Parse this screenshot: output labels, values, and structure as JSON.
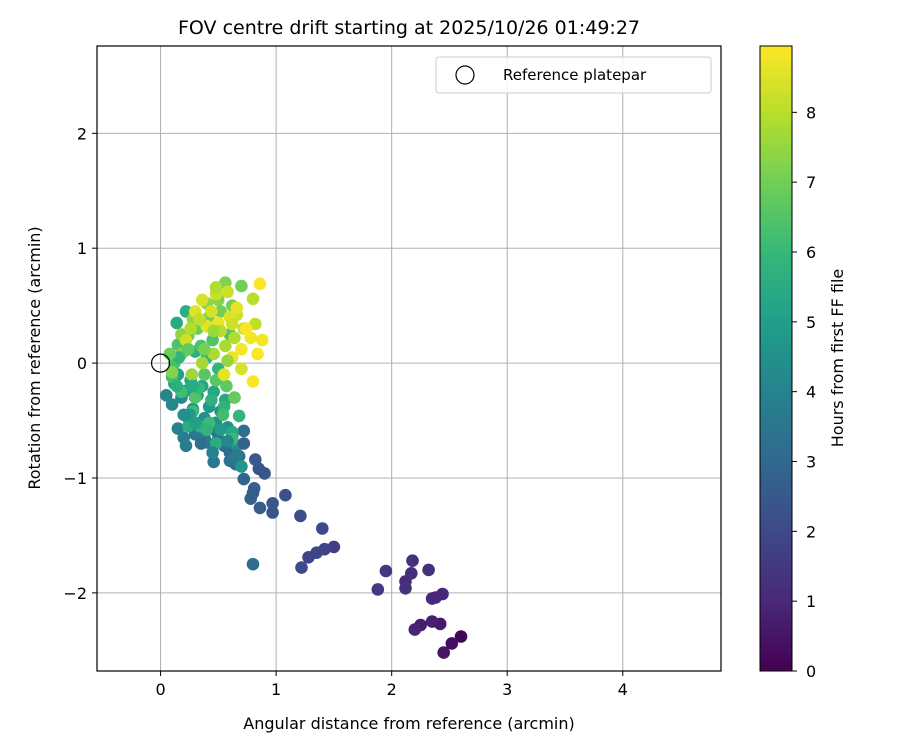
{
  "chart_data": {
    "type": "scatter",
    "title": "FOV centre drift starting at 2025/10/26 01:49:27",
    "xlabel": "Angular distance from reference (arcmin)",
    "ylabel": "Rotation from reference (arcmin)",
    "xlim": [
      -0.55,
      4.85
    ],
    "ylim": [
      -2.68,
      2.76
    ],
    "xticks": [
      0,
      1,
      2,
      3,
      4
    ],
    "yticks": [
      -2,
      -1,
      0,
      1,
      2
    ],
    "xtick_labels": [
      "0",
      "1",
      "2",
      "3",
      "4"
    ],
    "ytick_labels": [
      "−2",
      "−1",
      "0",
      "1",
      "2"
    ],
    "grid": true,
    "legend": {
      "label": "Reference platepar",
      "position": "top-right"
    },
    "reference_point": {
      "x": 0,
      "y": 0
    },
    "colorbar": {
      "label": "Hours from first FF file",
      "colormap": "viridis",
      "range": [
        0,
        8.95
      ],
      "ticks": [
        0,
        1,
        2,
        3,
        4,
        5,
        6,
        7,
        8
      ],
      "tick_labels": [
        "0",
        "1",
        "2",
        "3",
        "4",
        "5",
        "6",
        "7",
        "8"
      ]
    },
    "points": [
      [
        2.6,
        -2.38,
        0.1
      ],
      [
        2.52,
        -2.44,
        0.3
      ],
      [
        2.45,
        -2.52,
        0.5
      ],
      [
        2.42,
        -2.27,
        0.6
      ],
      [
        2.35,
        -2.25,
        0.8
      ],
      [
        2.25,
        -2.28,
        0.7
      ],
      [
        2.2,
        -2.32,
        0.9
      ],
      [
        2.44,
        -2.01,
        1.0
      ],
      [
        2.35,
        -2.05,
        1.1
      ],
      [
        2.38,
        -2.04,
        1.0
      ],
      [
        2.32,
        -1.8,
        1.2
      ],
      [
        2.18,
        -1.72,
        1.3
      ],
      [
        2.17,
        -1.83,
        1.2
      ],
      [
        2.12,
        -1.9,
        1.1
      ],
      [
        2.12,
        -1.96,
        1.3
      ],
      [
        1.95,
        -1.81,
        1.4
      ],
      [
        1.88,
        -1.97,
        1.5
      ],
      [
        1.5,
        -1.6,
        1.7
      ],
      [
        1.42,
        -1.62,
        1.8
      ],
      [
        1.35,
        -1.65,
        1.9
      ],
      [
        1.28,
        -1.69,
        1.9
      ],
      [
        1.22,
        -1.78,
        2.0
      ],
      [
        1.4,
        -1.44,
        2.0
      ],
      [
        1.21,
        -1.33,
        2.1
      ],
      [
        1.08,
        -1.15,
        2.2
      ],
      [
        0.97,
        -1.3,
        2.3
      ],
      [
        0.97,
        -1.22,
        2.5
      ],
      [
        0.9,
        -0.96,
        2.4
      ],
      [
        0.85,
        -0.92,
        2.3
      ],
      [
        0.82,
        -0.84,
        2.5
      ],
      [
        0.86,
        -1.26,
        2.6
      ],
      [
        0.81,
        -1.09,
        2.7
      ],
      [
        0.78,
        -1.18,
        2.8
      ],
      [
        0.8,
        -1.13,
        2.6
      ],
      [
        0.72,
        -1.01,
        2.9
      ],
      [
        0.8,
        -1.75,
        3.2
      ],
      [
        0.65,
        -0.88,
        3.0
      ],
      [
        0.6,
        -0.78,
        3.0
      ],
      [
        0.68,
        -0.81,
        3.1
      ],
      [
        0.72,
        -0.59,
        3.2
      ],
      [
        0.62,
        -0.63,
        3.3
      ],
      [
        0.55,
        -0.72,
        3.3
      ],
      [
        0.5,
        -0.66,
        3.4
      ],
      [
        0.48,
        -0.59,
        3.5
      ],
      [
        0.46,
        -0.86,
        3.6
      ],
      [
        0.4,
        -0.69,
        3.5
      ],
      [
        0.38,
        -0.65,
        3.7
      ],
      [
        0.35,
        -0.56,
        3.8
      ],
      [
        0.3,
        -0.62,
        3.6
      ],
      [
        0.22,
        -0.72,
        3.8
      ],
      [
        0.15,
        -0.57,
        3.9
      ],
      [
        0.2,
        -0.65,
        3.8
      ],
      [
        0.25,
        -0.5,
        4.0
      ],
      [
        0.05,
        -0.28,
        4.1
      ],
      [
        0.1,
        -0.36,
        4.2
      ],
      [
        0.18,
        -0.3,
        4.2
      ],
      [
        0.28,
        -0.4,
        4.3
      ],
      [
        0.38,
        -0.48,
        4.4
      ],
      [
        0.48,
        -0.52,
        4.5
      ],
      [
        0.58,
        -0.56,
        4.4
      ],
      [
        0.66,
        -0.72,
        4.6
      ],
      [
        0.7,
        -0.9,
        4.7
      ],
      [
        0.52,
        -0.42,
        4.6
      ],
      [
        0.42,
        -0.38,
        4.8
      ],
      [
        0.32,
        -0.28,
        4.9
      ],
      [
        0.22,
        -0.24,
        5.0
      ],
      [
        0.12,
        -0.18,
        5.0
      ],
      [
        0.15,
        -0.1,
        5.1
      ],
      [
        0.26,
        -0.15,
        5.2
      ],
      [
        0.36,
        -0.2,
        5.2
      ],
      [
        0.46,
        -0.25,
        5.3
      ],
      [
        0.56,
        -0.32,
        5.3
      ],
      [
        0.62,
        -0.6,
        5.4
      ],
      [
        0.48,
        -0.7,
        5.5
      ],
      [
        0.34,
        -0.55,
        5.6
      ],
      [
        0.24,
        -0.55,
        5.5
      ],
      [
        0.14,
        0.35,
        5.4
      ],
      [
        0.22,
        0.45,
        5.6
      ],
      [
        0.3,
        0.1,
        5.7
      ],
      [
        0.4,
        0.05,
        5.8
      ],
      [
        0.5,
        -0.05,
        5.9
      ],
      [
        0.55,
        -0.38,
        5.8
      ],
      [
        0.68,
        -0.46,
        5.9
      ],
      [
        0.62,
        -0.66,
        6.0
      ],
      [
        0.42,
        -0.52,
        6.1
      ],
      [
        0.28,
        -0.42,
        6.1
      ],
      [
        0.18,
        -0.25,
        6.2
      ],
      [
        0.1,
        -0.12,
        6.2
      ],
      [
        0.12,
        0.0,
        6.3
      ],
      [
        0.2,
        0.1,
        6.3
      ],
      [
        0.35,
        0.15,
        6.4
      ],
      [
        0.45,
        0.2,
        6.4
      ],
      [
        0.6,
        0.25,
        6.5
      ],
      [
        0.3,
        -0.3,
        6.5
      ],
      [
        0.38,
        -0.1,
        6.6
      ],
      [
        0.48,
        -0.15,
        6.6
      ],
      [
        0.57,
        -0.2,
        6.7
      ],
      [
        0.15,
        0.16,
        6.4
      ],
      [
        0.24,
        0.24,
        6.8
      ],
      [
        0.32,
        0.3,
        6.9
      ],
      [
        0.42,
        0.4,
        7.0
      ],
      [
        0.52,
        0.45,
        7.0
      ],
      [
        0.62,
        0.5,
        7.1
      ],
      [
        0.7,
        0.67,
        7.0
      ],
      [
        0.56,
        0.7,
        7.2
      ],
      [
        0.5,
        0.55,
        7.3
      ],
      [
        0.4,
        0.52,
        7.4
      ],
      [
        0.28,
        0.38,
        7.5
      ],
      [
        0.18,
        0.25,
        7.4
      ],
      [
        0.1,
        -0.08,
        7.3
      ],
      [
        0.27,
        -0.1,
        7.6
      ],
      [
        0.36,
        0.0,
        7.7
      ],
      [
        0.46,
        0.08,
        7.8
      ],
      [
        0.56,
        0.15,
        7.8
      ],
      [
        0.64,
        0.22,
        7.9
      ],
      [
        0.72,
        0.3,
        8.0
      ],
      [
        0.82,
        0.34,
        8.1
      ],
      [
        0.8,
        0.56,
        8.0
      ],
      [
        0.66,
        0.42,
        8.2
      ],
      [
        0.58,
        0.62,
        8.3
      ],
      [
        0.48,
        0.6,
        8.2
      ],
      [
        0.36,
        0.55,
        8.4
      ],
      [
        0.3,
        0.45,
        8.5
      ],
      [
        0.22,
        0.2,
        8.3
      ],
      [
        0.4,
        0.32,
        8.6
      ],
      [
        0.5,
        0.35,
        8.7
      ],
      [
        0.6,
        0.4,
        8.5
      ],
      [
        0.55,
        -0.1,
        8.6
      ],
      [
        0.62,
        0.05,
        8.7
      ],
      [
        0.7,
        0.12,
        8.8
      ],
      [
        0.78,
        0.22,
        8.8
      ],
      [
        0.84,
        0.08,
        8.9
      ],
      [
        0.8,
        -0.16,
        8.9
      ],
      [
        0.88,
        0.2,
        8.8
      ],
      [
        0.86,
        0.69,
        8.9
      ],
      [
        0.74,
        0.3,
        8.9
      ],
      [
        0.66,
        0.48,
        8.6
      ],
      [
        0.44,
        0.45,
        8.4
      ],
      [
        0.34,
        0.38,
        8.1
      ],
      [
        0.52,
        0.28,
        8.0
      ],
      [
        0.26,
        0.3,
        7.9
      ],
      [
        0.18,
        0.08,
        7.2
      ],
      [
        0.38,
        0.12,
        7.1
      ],
      [
        0.58,
        0.02,
        7.5
      ],
      [
        0.33,
        -0.22,
        6.0
      ],
      [
        0.44,
        -0.32,
        5.7
      ],
      [
        0.52,
        -0.58,
        4.9
      ],
      [
        0.25,
        -0.45,
        4.7
      ],
      [
        0.58,
        -0.68,
        4.1
      ],
      [
        0.45,
        -0.78,
        3.9
      ],
      [
        0.6,
        -0.85,
        3.4
      ],
      [
        0.35,
        -0.7,
        3.3
      ],
      [
        0.72,
        -0.7,
        2.8
      ],
      [
        0.66,
        -0.8,
        3.7
      ],
      [
        0.2,
        -0.45,
        4.5
      ],
      [
        0.28,
        -0.2,
        5.5
      ],
      [
        0.16,
        0.05,
        5.9
      ],
      [
        0.24,
        0.12,
        6.7
      ],
      [
        0.46,
        0.28,
        7.6
      ],
      [
        0.62,
        0.34,
        8.3
      ],
      [
        0.7,
        -0.05,
        8.4
      ],
      [
        0.64,
        -0.3,
        6.8
      ],
      [
        0.54,
        -0.45,
        6.2
      ],
      [
        0.4,
        -0.58,
        5.8
      ],
      [
        0.3,
        -0.52,
        5.1
      ],
      [
        0.14,
        -0.2,
        5.6
      ],
      [
        0.08,
        0.08,
        6.9
      ],
      [
        0.48,
        0.66,
        7.9
      ]
    ]
  }
}
